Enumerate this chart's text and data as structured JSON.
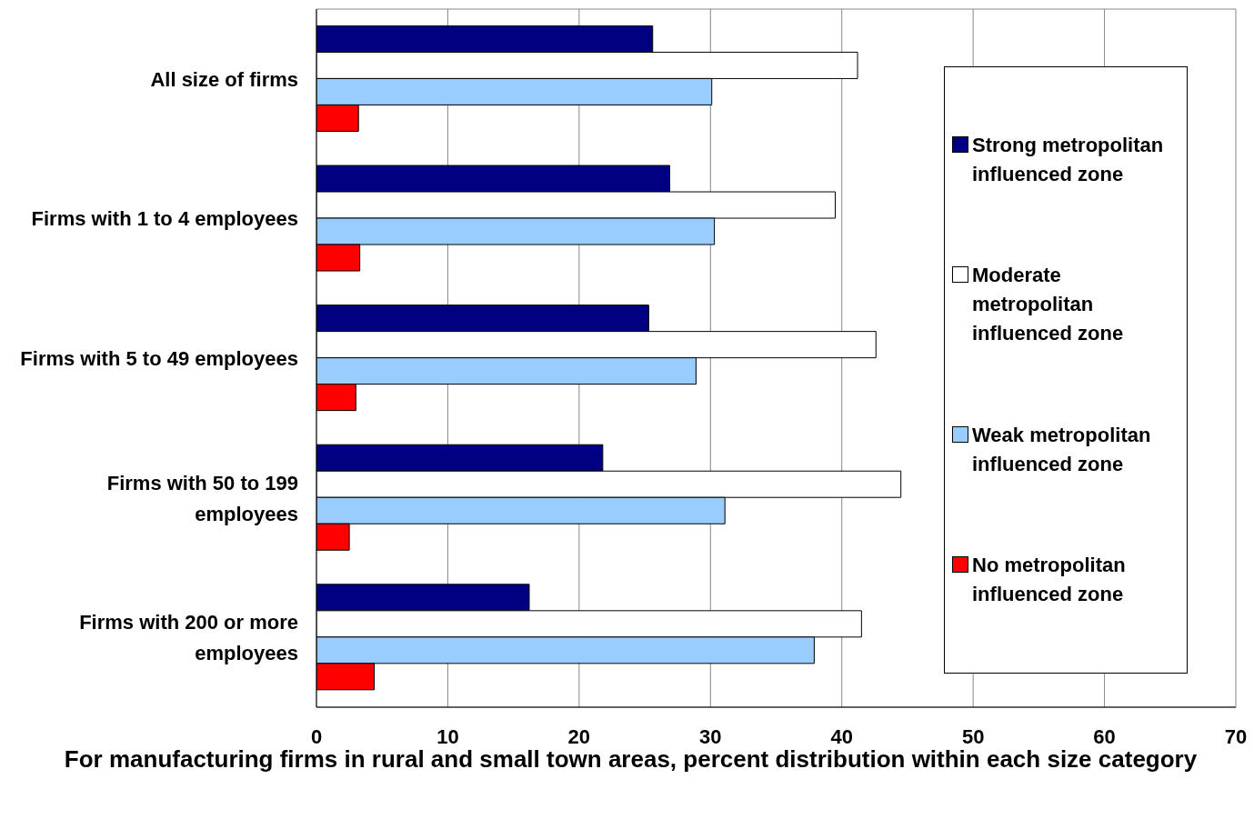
{
  "chart_data": {
    "type": "bar",
    "orientation": "horizontal",
    "xlabel": "For manufacturing firms in rural and small town areas, percent distribution within each size category",
    "categories": [
      "All size of firms",
      "Firms with 1 to 4 employees",
      "Firms with 5 to 49 employees",
      "Firms with 50 to 199 employees",
      "Firms with 200 or more employees"
    ],
    "series": [
      {
        "name": "Strong metropolitan influenced zone",
        "color": "#000080",
        "values": [
          25.6,
          26.9,
          25.3,
          21.8,
          16.2
        ]
      },
      {
        "name": "Moderate metropolitan influenced zone",
        "color": "#ffffff",
        "values": [
          41.2,
          39.5,
          42.6,
          44.5,
          41.5
        ]
      },
      {
        "name": "Weak metropolitan influenced zone",
        "color": "#99ccff",
        "values": [
          30.1,
          30.3,
          28.9,
          31.1,
          37.9
        ]
      },
      {
        "name": "No metropolitan influenced zone",
        "color": "#ff0000",
        "values": [
          3.2,
          3.3,
          3.0,
          2.5,
          4.4
        ]
      }
    ],
    "xlim": [
      0,
      70
    ],
    "xticks": [
      0,
      10,
      20,
      30,
      40,
      50,
      60,
      70
    ],
    "grid": "x",
    "legend": "right"
  }
}
